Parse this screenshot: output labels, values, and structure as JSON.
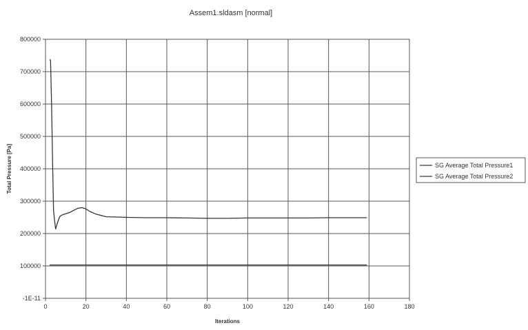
{
  "chart_data": {
    "type": "line",
    "title": "Assem1.sldasm [normal]",
    "xlabel": "Iterations",
    "ylabel": "Total Pressure [Pa]",
    "xlim": [
      0,
      180
    ],
    "ylim": [
      0,
      800000
    ],
    "x_ticks": [
      0,
      20,
      40,
      60,
      80,
      100,
      120,
      140,
      160,
      180
    ],
    "y_ticks": [
      0,
      100000,
      200000,
      300000,
      400000,
      500000,
      600000,
      700000,
      800000
    ],
    "x_tick_labels": [
      "0",
      "20",
      "40",
      "60",
      "80",
      "100",
      "120",
      "140",
      "160",
      "180"
    ],
    "y_tick_labels": [
      "-1E-11",
      "100000",
      "200000",
      "300000",
      "400000",
      "500000",
      "600000",
      "700000",
      "800000"
    ],
    "grid": true,
    "legend_position": "right",
    "series": [
      {
        "name": "SG Average Total Pressure1",
        "color": "#333333",
        "x": [
          2,
          2.5,
          3,
          3.5,
          4,
          4.5,
          5,
          6,
          7,
          8,
          10,
          12,
          14,
          16,
          18,
          20,
          22,
          25,
          30,
          35,
          40,
          50,
          60,
          70,
          80,
          90,
          100,
          110,
          120,
          130,
          140,
          150,
          159
        ],
        "y": [
          737000,
          736000,
          600000,
          420000,
          270000,
          240000,
          214000,
          235000,
          252000,
          257000,
          261000,
          265000,
          272000,
          278000,
          280000,
          276000,
          268000,
          260000,
          252000,
          251000,
          250000,
          249000,
          249000,
          248000,
          247000,
          247000,
          248000,
          248000,
          248000,
          248000,
          249000,
          249000,
          249000
        ]
      },
      {
        "name": "SG Average Total Pressure2",
        "color": "#333333",
        "x": [
          2,
          10,
          20,
          40,
          60,
          80,
          100,
          120,
          140,
          159
        ],
        "y": [
          103000,
          103000,
          103000,
          103000,
          103000,
          103000,
          103000,
          103000,
          103000,
          103000
        ]
      }
    ]
  }
}
